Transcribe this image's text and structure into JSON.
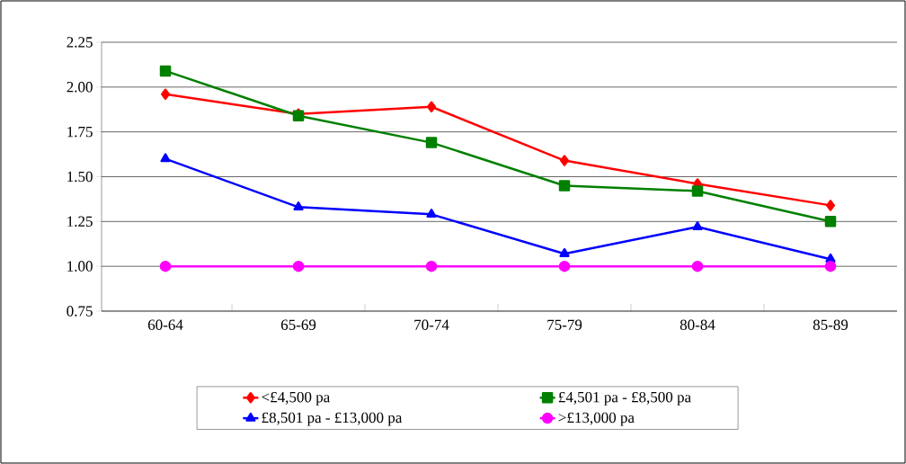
{
  "chart_data": {
    "type": "line",
    "categories": [
      "60-64",
      "65-69",
      "70-74",
      "75-79",
      "80-84",
      "85-89"
    ],
    "series": [
      {
        "name": "<£4,500 pa",
        "color": "#ff0000",
        "marker": "diamond",
        "values": [
          1.96,
          1.85,
          1.89,
          1.59,
          1.46,
          1.34
        ]
      },
      {
        "name": "£4,501 pa - £8,500 pa",
        "color": "#008000",
        "marker": "square",
        "values": [
          2.09,
          1.84,
          1.69,
          1.45,
          1.42,
          1.25
        ]
      },
      {
        "name": "£8,501 pa - £13,000 pa",
        "color": "#0000ff",
        "marker": "triangle",
        "values": [
          1.6,
          1.33,
          1.29,
          1.07,
          1.22,
          1.04
        ]
      },
      {
        "name": ">£13,000 pa",
        "color": "#ff00ff",
        "marker": "circle",
        "values": [
          1.0,
          1.0,
          1.0,
          1.0,
          1.0,
          1.0
        ]
      }
    ],
    "ylim": [
      0.75,
      2.25
    ],
    "yticks": [
      {
        "value": 0.75,
        "label": "0.75"
      },
      {
        "value": 1.0,
        "label": "1.00"
      },
      {
        "value": 1.25,
        "label": "1.25"
      },
      {
        "value": 1.5,
        "label": "1.50"
      },
      {
        "value": 1.75,
        "label": "1.75"
      },
      {
        "value": 2.0,
        "label": "2.00"
      },
      {
        "value": 2.25,
        "label": "2.25"
      }
    ],
    "grid": "y",
    "legend": "bottom"
  }
}
